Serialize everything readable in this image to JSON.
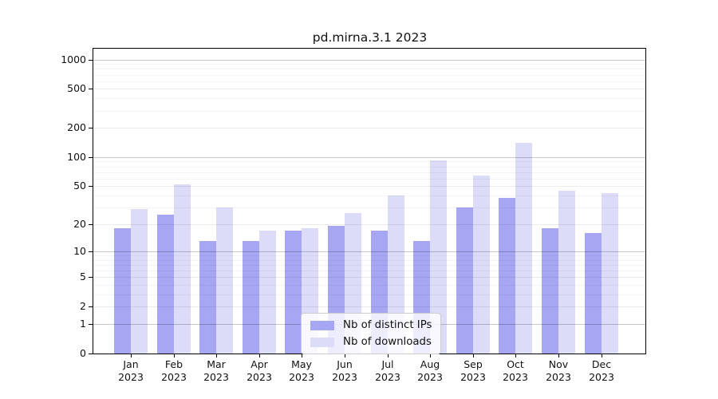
{
  "chart_data": {
    "type": "bar",
    "title": "pd.mirna.3.1 2023",
    "categories": [
      "Jan 2023",
      "Feb 2023",
      "Mar 2023",
      "Apr 2023",
      "May 2023",
      "Jun 2023",
      "Jul 2023",
      "Aug 2023",
      "Sep 2023",
      "Oct 2023",
      "Nov 2023",
      "Dec 2023"
    ],
    "series": [
      {
        "name": "Nb of distinct IPs",
        "color": "#a6a6f2",
        "values": [
          18,
          25,
          13,
          13,
          17,
          19,
          17,
          13,
          30,
          38,
          18,
          16
        ]
      },
      {
        "name": "Nb of downloads",
        "color": "#dcdcf8",
        "values": [
          29,
          52,
          30,
          17,
          18,
          26,
          40,
          93,
          64,
          140,
          45,
          42
        ]
      }
    ],
    "y_axis": {
      "scale": "log10(value+1)",
      "ticks": [
        0,
        1,
        2,
        5,
        10,
        20,
        50,
        100,
        200,
        500,
        1000
      ],
      "decade_ticks": [
        1,
        10,
        100,
        1000
      ],
      "ylim": [
        0,
        1200
      ]
    },
    "grid": true,
    "legend_position": "bottom-center",
    "colors": {
      "grid_major": "rgba(0,0,0,0.22)",
      "grid_labeled": "rgba(0,0,0,0.08)",
      "grid_minor": "rgba(0,0,0,0.045)",
      "spine": "#000000",
      "text": "#111111"
    }
  }
}
